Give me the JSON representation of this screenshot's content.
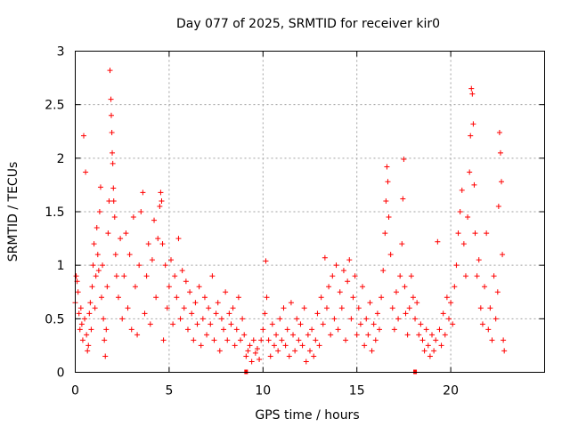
{
  "chart_data": {
    "type": "scatter",
    "title": "Day 077 of 2025, SRMTID for receiver kir0",
    "xlabel": "GPS time / hours",
    "ylabel": "SRMTID / TECUs",
    "xlim": [
      0,
      25
    ],
    "ylim": [
      0,
      3
    ],
    "xticks": [
      0,
      5,
      10,
      15,
      20
    ],
    "yticks": [
      0,
      0.5,
      1,
      1.5,
      2,
      2.5,
      3
    ],
    "ytick_labels": [
      "0",
      "0.5",
      "1",
      "1.5",
      "2",
      "2.5",
      "3"
    ],
    "xtick_labels": [
      "0",
      "5",
      "10",
      "15",
      "20"
    ],
    "grid": true,
    "marker": "+",
    "color": "#ff0000",
    "gap_markers_x": [
      9.1,
      18.1
    ],
    "series": [
      {
        "name": "kir0",
        "points": [
          [
            0.0,
            0.65
          ],
          [
            0.05,
            0.9
          ],
          [
            0.1,
            0.85
          ],
          [
            0.15,
            0.75
          ],
          [
            0.2,
            0.55
          ],
          [
            0.25,
            0.4
          ],
          [
            0.3,
            0.6
          ],
          [
            0.35,
            0.45
          ],
          [
            0.4,
            0.3
          ],
          [
            0.45,
            2.21
          ],
          [
            0.5,
            0.5
          ],
          [
            0.55,
            1.87
          ],
          [
            0.6,
            0.35
          ],
          [
            0.65,
            0.2
          ],
          [
            0.7,
            0.25
          ],
          [
            0.75,
            0.55
          ],
          [
            0.8,
            0.65
          ],
          [
            0.85,
            0.4
          ],
          [
            0.9,
            0.8
          ],
          [
            0.95,
            1.0
          ],
          [
            1.0,
            1.2
          ],
          [
            1.05,
            0.6
          ],
          [
            1.1,
            0.9
          ],
          [
            1.15,
            1.35
          ],
          [
            1.2,
            1.1
          ],
          [
            1.25,
            0.95
          ],
          [
            1.3,
            1.5
          ],
          [
            1.35,
            1.73
          ],
          [
            1.4,
            0.7
          ],
          [
            1.45,
            1.0
          ],
          [
            1.5,
            0.5
          ],
          [
            1.55,
            0.3
          ],
          [
            1.6,
            0.15
          ],
          [
            1.65,
            0.4
          ],
          [
            1.7,
            0.8
          ],
          [
            1.75,
            1.3
          ],
          [
            1.8,
            1.6
          ],
          [
            1.85,
            2.82
          ],
          [
            1.9,
            2.55
          ],
          [
            1.92,
            2.4
          ],
          [
            1.95,
            2.24
          ],
          [
            1.97,
            2.05
          ],
          [
            2.0,
            1.95
          ],
          [
            2.03,
            1.72
          ],
          [
            2.05,
            1.6
          ],
          [
            2.1,
            1.45
          ],
          [
            2.15,
            1.1
          ],
          [
            2.2,
            0.9
          ],
          [
            2.3,
            0.7
          ],
          [
            2.4,
            1.25
          ],
          [
            2.5,
            0.5
          ],
          [
            2.6,
            0.9
          ],
          [
            2.7,
            1.3
          ],
          [
            2.8,
            0.6
          ],
          [
            2.9,
            1.1
          ],
          [
            3.0,
            0.4
          ],
          [
            3.1,
            1.45
          ],
          [
            3.2,
            0.8
          ],
          [
            3.3,
            0.35
          ],
          [
            3.4,
            1.0
          ],
          [
            3.5,
            1.5
          ],
          [
            3.6,
            1.68
          ],
          [
            3.7,
            0.55
          ],
          [
            3.8,
            0.9
          ],
          [
            3.9,
            1.2
          ],
          [
            4.0,
            0.45
          ],
          [
            4.1,
            1.05
          ],
          [
            4.2,
            1.42
          ],
          [
            4.3,
            0.7
          ],
          [
            4.4,
            1.25
          ],
          [
            4.5,
            1.55
          ],
          [
            4.55,
            1.68
          ],
          [
            4.6,
            1.6
          ],
          [
            4.65,
            1.2
          ],
          [
            4.7,
            0.3
          ],
          [
            4.8,
            1.0
          ],
          [
            4.9,
            0.6
          ],
          [
            5.0,
            0.8
          ],
          [
            5.1,
            1.05
          ],
          [
            5.2,
            0.45
          ],
          [
            5.3,
            0.9
          ],
          [
            5.4,
            0.7
          ],
          [
            5.5,
            1.25
          ],
          [
            5.6,
            0.5
          ],
          [
            5.7,
            0.95
          ],
          [
            5.8,
            0.6
          ],
          [
            5.9,
            0.85
          ],
          [
            6.0,
            0.4
          ],
          [
            6.1,
            0.75
          ],
          [
            6.2,
            0.55
          ],
          [
            6.3,
            0.3
          ],
          [
            6.4,
            0.65
          ],
          [
            6.5,
            0.45
          ],
          [
            6.6,
            0.8
          ],
          [
            6.7,
            0.25
          ],
          [
            6.8,
            0.5
          ],
          [
            6.9,
            0.7
          ],
          [
            7.0,
            0.35
          ],
          [
            7.1,
            0.6
          ],
          [
            7.2,
            0.45
          ],
          [
            7.3,
            0.9
          ],
          [
            7.4,
            0.3
          ],
          [
            7.5,
            0.55
          ],
          [
            7.6,
            0.65
          ],
          [
            7.7,
            0.2
          ],
          [
            7.8,
            0.5
          ],
          [
            7.9,
            0.4
          ],
          [
            8.0,
            0.75
          ],
          [
            8.1,
            0.3
          ],
          [
            8.2,
            0.55
          ],
          [
            8.3,
            0.45
          ],
          [
            8.4,
            0.6
          ],
          [
            8.5,
            0.25
          ],
          [
            8.6,
            0.4
          ],
          [
            8.7,
            0.7
          ],
          [
            8.8,
            0.3
          ],
          [
            8.9,
            0.5
          ],
          [
            9.0,
            0.35
          ],
          [
            9.1,
            0.15
          ],
          [
            9.2,
            0.2
          ],
          [
            9.3,
            0.25
          ],
          [
            9.4,
            0.1
          ],
          [
            9.5,
            0.3
          ],
          [
            9.6,
            0.18
          ],
          [
            9.7,
            0.22
          ],
          [
            9.8,
            0.12
          ],
          [
            9.9,
            0.3
          ],
          [
            10.0,
            0.4
          ],
          [
            10.1,
            0.55
          ],
          [
            10.15,
            1.04
          ],
          [
            10.2,
            0.7
          ],
          [
            10.3,
            0.3
          ],
          [
            10.4,
            0.15
          ],
          [
            10.5,
            0.45
          ],
          [
            10.6,
            0.25
          ],
          [
            10.7,
            0.35
          ],
          [
            10.8,
            0.2
          ],
          [
            10.9,
            0.5
          ],
          [
            11.0,
            0.3
          ],
          [
            11.1,
            0.6
          ],
          [
            11.2,
            0.25
          ],
          [
            11.3,
            0.4
          ],
          [
            11.4,
            0.15
          ],
          [
            11.5,
            0.65
          ],
          [
            11.6,
            0.35
          ],
          [
            11.7,
            0.2
          ],
          [
            11.8,
            0.5
          ],
          [
            11.9,
            0.3
          ],
          [
            12.0,
            0.45
          ],
          [
            12.1,
            0.25
          ],
          [
            12.2,
            0.6
          ],
          [
            12.3,
            0.1
          ],
          [
            12.4,
            0.35
          ],
          [
            12.5,
            0.2
          ],
          [
            12.6,
            0.4
          ],
          [
            12.7,
            0.15
          ],
          [
            12.8,
            0.3
          ],
          [
            12.9,
            0.55
          ],
          [
            13.0,
            0.25
          ],
          [
            13.1,
            0.7
          ],
          [
            13.2,
            0.45
          ],
          [
            13.3,
            1.07
          ],
          [
            13.4,
            0.6
          ],
          [
            13.5,
            0.8
          ],
          [
            13.6,
            0.35
          ],
          [
            13.7,
            0.9
          ],
          [
            13.8,
            0.5
          ],
          [
            13.9,
            1.0
          ],
          [
            14.0,
            0.4
          ],
          [
            14.1,
            0.75
          ],
          [
            14.2,
            0.6
          ],
          [
            14.3,
            0.95
          ],
          [
            14.4,
            0.3
          ],
          [
            14.5,
            0.85
          ],
          [
            14.6,
            1.05
          ],
          [
            14.7,
            0.5
          ],
          [
            14.8,
            0.7
          ],
          [
            14.9,
            0.9
          ],
          [
            15.0,
            0.35
          ],
          [
            15.1,
            0.6
          ],
          [
            15.2,
            0.45
          ],
          [
            15.3,
            0.8
          ],
          [
            15.4,
            0.25
          ],
          [
            15.5,
            0.5
          ],
          [
            15.6,
            0.35
          ],
          [
            15.7,
            0.65
          ],
          [
            15.8,
            0.2
          ],
          [
            15.9,
            0.45
          ],
          [
            16.0,
            0.3
          ],
          [
            16.1,
            0.55
          ],
          [
            16.2,
            0.4
          ],
          [
            16.3,
            0.7
          ],
          [
            16.4,
            0.95
          ],
          [
            16.5,
            1.3
          ],
          [
            16.55,
            1.6
          ],
          [
            16.6,
            1.92
          ],
          [
            16.65,
            1.78
          ],
          [
            16.7,
            1.45
          ],
          [
            16.8,
            1.1
          ],
          [
            16.9,
            0.6
          ],
          [
            17.0,
            0.4
          ],
          [
            17.1,
            0.75
          ],
          [
            17.2,
            0.5
          ],
          [
            17.3,
            0.9
          ],
          [
            17.4,
            1.2
          ],
          [
            17.45,
            1.62
          ],
          [
            17.5,
            1.99
          ],
          [
            17.55,
            0.8
          ],
          [
            17.6,
            0.55
          ],
          [
            17.7,
            0.35
          ],
          [
            17.8,
            0.6
          ],
          [
            17.9,
            0.9
          ],
          [
            18.0,
            0.7
          ],
          [
            18.1,
            0.5
          ],
          [
            18.2,
            0.65
          ],
          [
            18.3,
            0.35
          ],
          [
            18.4,
            0.45
          ],
          [
            18.5,
            0.3
          ],
          [
            18.6,
            0.2
          ],
          [
            18.7,
            0.4
          ],
          [
            18.8,
            0.25
          ],
          [
            18.9,
            0.15
          ],
          [
            19.0,
            0.35
          ],
          [
            19.1,
            0.2
          ],
          [
            19.2,
            0.3
          ],
          [
            19.3,
            1.22
          ],
          [
            19.4,
            0.4
          ],
          [
            19.5,
            0.25
          ],
          [
            19.6,
            0.55
          ],
          [
            19.7,
            0.35
          ],
          [
            19.8,
            0.7
          ],
          [
            19.9,
            0.5
          ],
          [
            20.0,
            0.65
          ],
          [
            20.1,
            0.45
          ],
          [
            20.2,
            0.8
          ],
          [
            20.3,
            1.0
          ],
          [
            20.4,
            1.3
          ],
          [
            20.5,
            1.5
          ],
          [
            20.6,
            1.7
          ],
          [
            20.7,
            1.2
          ],
          [
            20.8,
            0.9
          ],
          [
            20.9,
            1.45
          ],
          [
            21.0,
            1.87
          ],
          [
            21.05,
            2.21
          ],
          [
            21.1,
            2.65
          ],
          [
            21.15,
            2.6
          ],
          [
            21.2,
            2.32
          ],
          [
            21.25,
            1.75
          ],
          [
            21.3,
            1.3
          ],
          [
            21.4,
            0.9
          ],
          [
            21.5,
            1.05
          ],
          [
            21.6,
            0.6
          ],
          [
            21.7,
            0.45
          ],
          [
            21.8,
            0.8
          ],
          [
            21.9,
            1.3
          ],
          [
            22.0,
            0.4
          ],
          [
            22.1,
            0.6
          ],
          [
            22.2,
            0.3
          ],
          [
            22.3,
            0.9
          ],
          [
            22.4,
            0.5
          ],
          [
            22.5,
            0.75
          ],
          [
            22.55,
            1.55
          ],
          [
            22.6,
            2.24
          ],
          [
            22.65,
            2.05
          ],
          [
            22.7,
            1.78
          ],
          [
            22.75,
            1.1
          ],
          [
            22.8,
            0.3
          ],
          [
            22.85,
            0.2
          ]
        ]
      }
    ]
  }
}
